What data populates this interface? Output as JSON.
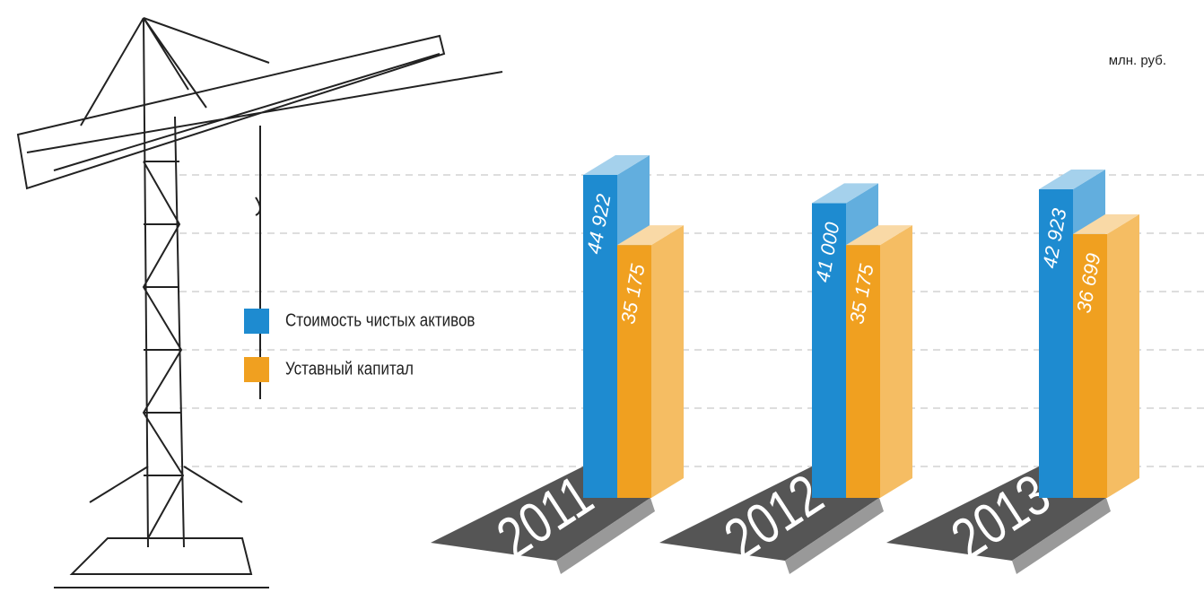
{
  "chart_data": {
    "type": "bar3d",
    "unit": "млн. руб.",
    "categories": [
      "2011",
      "2012",
      "2013"
    ],
    "series": [
      {
        "name": "Стоимость чистых активов",
        "color": "#1e8bd0",
        "values": [
          44922,
          41000,
          42923
        ],
        "value_labels": [
          "44 922",
          "41 000",
          "42 923"
        ]
      },
      {
        "name": "Уставный капитал",
        "color": "#f0a020",
        "values": [
          35175,
          35175,
          36699
        ],
        "value_labels": [
          "35 175",
          "35 175",
          "36 699"
        ]
      }
    ]
  }
}
